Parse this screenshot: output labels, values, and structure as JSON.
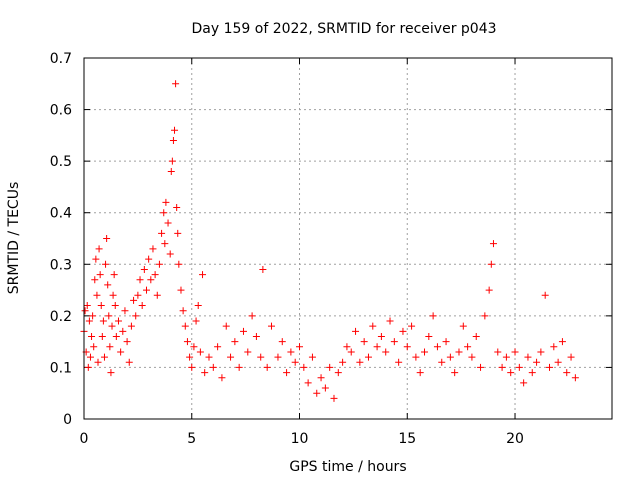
{
  "chart_data": {
    "type": "scatter",
    "title": "Day 159 of 2022, SRMTID for receiver p043",
    "xlabel": "GPS time / hours",
    "ylabel": "SRMTID / TECUs",
    "xlim": [
      0,
      24.5
    ],
    "ylim": [
      0,
      0.7
    ],
    "xticks": [
      0,
      5,
      10,
      15,
      20
    ],
    "xtick_labels": [
      "0",
      "5",
      "10",
      "15",
      "20"
    ],
    "yticks": [
      0,
      0.1,
      0.2,
      0.3,
      0.4,
      0.5,
      0.6,
      0.7
    ],
    "ytick_labels": [
      "0",
      "0.1",
      "0.2",
      "0.3",
      "0.4",
      "0.5",
      "0.6",
      "0.7"
    ],
    "grid": true,
    "marker": "plus",
    "series": [
      {
        "name": "p043",
        "color": "#ff0000",
        "points": [
          [
            0.0,
            0.17
          ],
          [
            0.05,
            0.21
          ],
          [
            0.1,
            0.13
          ],
          [
            0.15,
            0.22
          ],
          [
            0.2,
            0.1
          ],
          [
            0.25,
            0.19
          ],
          [
            0.3,
            0.12
          ],
          [
            0.35,
            0.16
          ],
          [
            0.4,
            0.2
          ],
          [
            0.45,
            0.14
          ],
          [
            0.5,
            0.27
          ],
          [
            0.55,
            0.31
          ],
          [
            0.6,
            0.24
          ],
          [
            0.65,
            0.11
          ],
          [
            0.7,
            0.33
          ],
          [
            0.75,
            0.28
          ],
          [
            0.8,
            0.22
          ],
          [
            0.85,
            0.16
          ],
          [
            0.9,
            0.19
          ],
          [
            0.95,
            0.12
          ],
          [
            1.0,
            0.3
          ],
          [
            1.05,
            0.35
          ],
          [
            1.1,
            0.26
          ],
          [
            1.15,
            0.2
          ],
          [
            1.2,
            0.14
          ],
          [
            1.25,
            0.09
          ],
          [
            1.3,
            0.18
          ],
          [
            1.35,
            0.24
          ],
          [
            1.4,
            0.28
          ],
          [
            1.45,
            0.22
          ],
          [
            1.5,
            0.16
          ],
          [
            1.6,
            0.19
          ],
          [
            1.7,
            0.13
          ],
          [
            1.8,
            0.17
          ],
          [
            1.9,
            0.21
          ],
          [
            2.0,
            0.15
          ],
          [
            2.1,
            0.11
          ],
          [
            2.2,
            0.18
          ],
          [
            2.3,
            0.23
          ],
          [
            2.4,
            0.2
          ],
          [
            2.5,
            0.24
          ],
          [
            2.6,
            0.27
          ],
          [
            2.7,
            0.22
          ],
          [
            2.8,
            0.29
          ],
          [
            2.9,
            0.25
          ],
          [
            3.0,
            0.31
          ],
          [
            3.1,
            0.27
          ],
          [
            3.2,
            0.33
          ],
          [
            3.3,
            0.28
          ],
          [
            3.4,
            0.24
          ],
          [
            3.5,
            0.3
          ],
          [
            3.6,
            0.36
          ],
          [
            3.7,
            0.4
          ],
          [
            3.75,
            0.34
          ],
          [
            3.8,
            0.42
          ],
          [
            3.9,
            0.38
          ],
          [
            4.0,
            0.32
          ],
          [
            4.05,
            0.48
          ],
          [
            4.1,
            0.5
          ],
          [
            4.15,
            0.54
          ],
          [
            4.2,
            0.56
          ],
          [
            4.25,
            0.65
          ],
          [
            4.3,
            0.41
          ],
          [
            4.35,
            0.36
          ],
          [
            4.4,
            0.3
          ],
          [
            4.5,
            0.25
          ],
          [
            4.6,
            0.21
          ],
          [
            4.7,
            0.18
          ],
          [
            4.8,
            0.15
          ],
          [
            4.9,
            0.12
          ],
          [
            5.0,
            0.1
          ],
          [
            5.1,
            0.14
          ],
          [
            5.2,
            0.19
          ],
          [
            5.3,
            0.22
          ],
          [
            5.4,
            0.13
          ],
          [
            5.5,
            0.28
          ],
          [
            5.6,
            0.09
          ],
          [
            5.8,
            0.12
          ],
          [
            6.0,
            0.1
          ],
          [
            6.2,
            0.14
          ],
          [
            6.4,
            0.08
          ],
          [
            6.6,
            0.18
          ],
          [
            6.8,
            0.12
          ],
          [
            7.0,
            0.15
          ],
          [
            7.2,
            0.1
          ],
          [
            7.4,
            0.17
          ],
          [
            7.6,
            0.13
          ],
          [
            7.8,
            0.2
          ],
          [
            8.0,
            0.16
          ],
          [
            8.2,
            0.12
          ],
          [
            8.3,
            0.29
          ],
          [
            8.5,
            0.1
          ],
          [
            8.7,
            0.18
          ],
          [
            9.0,
            0.12
          ],
          [
            9.2,
            0.15
          ],
          [
            9.4,
            0.09
          ],
          [
            9.6,
            0.13
          ],
          [
            9.8,
            0.11
          ],
          [
            10.0,
            0.14
          ],
          [
            10.2,
            0.1
          ],
          [
            10.4,
            0.07
          ],
          [
            10.6,
            0.12
          ],
          [
            10.8,
            0.05
          ],
          [
            11.0,
            0.08
          ],
          [
            11.2,
            0.06
          ],
          [
            11.4,
            0.1
          ],
          [
            11.6,
            0.04
          ],
          [
            11.8,
            0.09
          ],
          [
            12.0,
            0.11
          ],
          [
            12.2,
            0.14
          ],
          [
            12.4,
            0.13
          ],
          [
            12.6,
            0.17
          ],
          [
            12.8,
            0.11
          ],
          [
            13.0,
            0.15
          ],
          [
            13.2,
            0.12
          ],
          [
            13.4,
            0.18
          ],
          [
            13.6,
            0.14
          ],
          [
            13.8,
            0.16
          ],
          [
            14.0,
            0.13
          ],
          [
            14.2,
            0.19
          ],
          [
            14.4,
            0.15
          ],
          [
            14.6,
            0.11
          ],
          [
            14.8,
            0.17
          ],
          [
            15.0,
            0.14
          ],
          [
            15.2,
            0.18
          ],
          [
            15.4,
            0.12
          ],
          [
            15.6,
            0.09
          ],
          [
            15.8,
            0.13
          ],
          [
            16.0,
            0.16
          ],
          [
            16.2,
            0.2
          ],
          [
            16.4,
            0.14
          ],
          [
            16.6,
            0.11
          ],
          [
            16.8,
            0.15
          ],
          [
            17.0,
            0.12
          ],
          [
            17.2,
            0.09
          ],
          [
            17.4,
            0.13
          ],
          [
            17.6,
            0.18
          ],
          [
            17.8,
            0.14
          ],
          [
            18.0,
            0.12
          ],
          [
            18.2,
            0.16
          ],
          [
            18.4,
            0.1
          ],
          [
            18.6,
            0.2
          ],
          [
            18.8,
            0.25
          ],
          [
            18.9,
            0.3
          ],
          [
            19.0,
            0.34
          ],
          [
            19.2,
            0.13
          ],
          [
            19.4,
            0.1
          ],
          [
            19.6,
            0.12
          ],
          [
            19.8,
            0.09
          ],
          [
            20.0,
            0.13
          ],
          [
            20.2,
            0.1
          ],
          [
            20.4,
            0.07
          ],
          [
            20.6,
            0.12
          ],
          [
            20.8,
            0.09
          ],
          [
            21.0,
            0.11
          ],
          [
            21.2,
            0.13
          ],
          [
            21.4,
            0.24
          ],
          [
            21.6,
            0.1
          ],
          [
            21.8,
            0.14
          ],
          [
            22.0,
            0.11
          ],
          [
            22.2,
            0.15
          ],
          [
            22.4,
            0.09
          ],
          [
            22.6,
            0.12
          ],
          [
            22.8,
            0.08
          ]
        ]
      }
    ]
  }
}
